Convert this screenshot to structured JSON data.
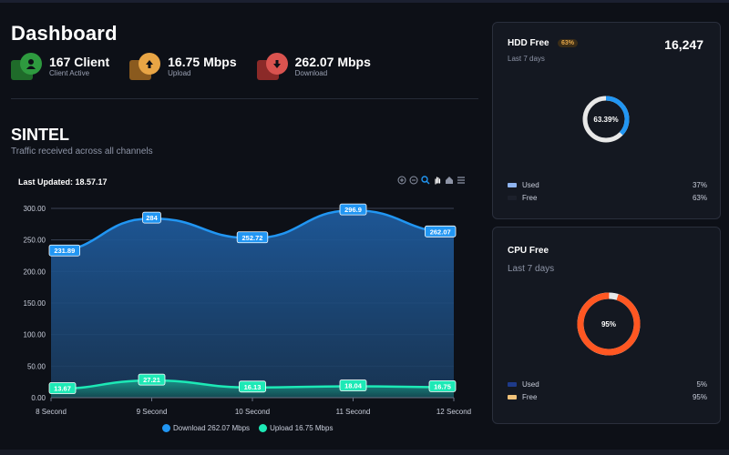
{
  "header": {
    "title": "Dashboard"
  },
  "stats": [
    {
      "value": "167 Client",
      "label": "Client Active",
      "icon": "user-icon",
      "color": "#2e9a3f",
      "back": "#1f6b2a"
    },
    {
      "value": "16.75 Mbps",
      "label": "Upload",
      "icon": "cloud-upload-icon",
      "color": "#e8a545",
      "back": "#8a5a1e"
    },
    {
      "value": "262.07 Mbps",
      "label": "Download",
      "icon": "cloud-download-icon",
      "color": "#d9534f",
      "back": "#8b2a28"
    }
  ],
  "section": {
    "title": "SINTEL",
    "subtitle": "Traffic received across all channels"
  },
  "chart_header": {
    "last_updated": "Last Updated: 18.57.17"
  },
  "chart_data": {
    "type": "area",
    "categories": [
      "8 Second",
      "9 Second",
      "10 Second",
      "11 Second",
      "12 Second"
    ],
    "series": [
      {
        "name": "Download 262.07 Mbps",
        "values": [
          231.89,
          284,
          252.72,
          296.9,
          262.07
        ],
        "labels": [
          "231.89",
          "284",
          "252.72",
          "296.9",
          "262.07"
        ],
        "color": "#2196f3"
      },
      {
        "name": "Upload 16.75 Mbps",
        "values": [
          13.67,
          27.21,
          16.13,
          18.04,
          16.75
        ],
        "labels": [
          "13.67",
          "27.21",
          "16.13",
          "18.04",
          "16.75"
        ],
        "color": "#1de9b6"
      }
    ],
    "yticks": [
      "0.00",
      "50.00",
      "100.00",
      "150.00",
      "200.00",
      "250.00",
      "300.00"
    ],
    "ylim": [
      0,
      300
    ],
    "legend_position": "bottom",
    "grid": true
  },
  "hdd_card": {
    "title": "HDD Free",
    "badge": "63%",
    "subtitle": "Last 7 days",
    "value": "16,247",
    "center_label": "63.39%",
    "used_fraction": 0.37,
    "ring_color": "#2196f3",
    "rest_color": "#e8e8e8",
    "legend": [
      {
        "label": "Used",
        "value": "37%",
        "color": "#8fb4ef"
      },
      {
        "label": "Free",
        "value": "63%",
        "color": "#1c202b"
      }
    ]
  },
  "cpu_card": {
    "title": "CPU Free",
    "subtitle": "Last 7 days",
    "center_label": "95%",
    "free_fraction": 0.95,
    "ring_color": "#ff5722",
    "rest_color": "#e8e8e8",
    "legend": [
      {
        "label": "Used",
        "value": "5%",
        "color": "#1e3a8a"
      },
      {
        "label": "Free",
        "value": "95%",
        "color": "#f0c27a"
      }
    ]
  }
}
